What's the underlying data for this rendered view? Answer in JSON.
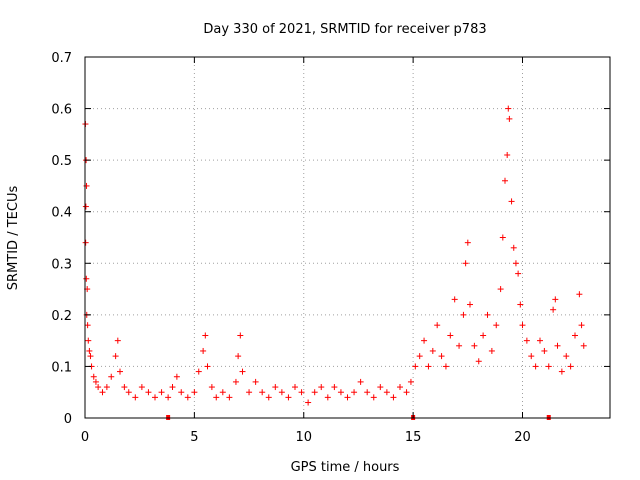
{
  "chart_data": {
    "type": "scatter",
    "title": "Day 330 of 2021, SRMTID for receiver p783",
    "xlabel": "GPS time / hours",
    "ylabel": "SRMTID / TECUs",
    "xlim": [
      0,
      24
    ],
    "ylim": [
      0,
      0.7
    ],
    "x_ticks": [
      0,
      5,
      10,
      15,
      20
    ],
    "x_tick_labels": [
      "0",
      "5",
      "10",
      "15",
      "20"
    ],
    "y_ticks": [
      0,
      0.1,
      0.2,
      0.3,
      0.4,
      0.5,
      0.6,
      0.7
    ],
    "y_tick_labels": [
      "0",
      "0.1",
      "0.2",
      "0.3",
      "0.4",
      "0.5",
      "0.6",
      "0.7"
    ],
    "grid": true,
    "marker": "+",
    "color": "#ff0000",
    "series": [
      {
        "name": "SRMTID",
        "points": [
          [
            0.02,
            0.57
          ],
          [
            0.05,
            0.5
          ],
          [
            0.07,
            0.45
          ],
          [
            0.04,
            0.41
          ],
          [
            0.03,
            0.34
          ],
          [
            0.06,
            0.27
          ],
          [
            0.1,
            0.25
          ],
          [
            0.08,
            0.2
          ],
          [
            0.12,
            0.18
          ],
          [
            0.15,
            0.15
          ],
          [
            0.2,
            0.13
          ],
          [
            0.25,
            0.12
          ],
          [
            0.3,
            0.1
          ],
          [
            0.4,
            0.08
          ],
          [
            0.5,
            0.07
          ],
          [
            0.6,
            0.06
          ],
          [
            0.8,
            0.05
          ],
          [
            1.0,
            0.06
          ],
          [
            1.2,
            0.08
          ],
          [
            1.4,
            0.12
          ],
          [
            1.5,
            0.15
          ],
          [
            1.6,
            0.09
          ],
          [
            1.8,
            0.06
          ],
          [
            2.0,
            0.05
          ],
          [
            2.3,
            0.04
          ],
          [
            2.6,
            0.06
          ],
          [
            2.9,
            0.05
          ],
          [
            3.2,
            0.04
          ],
          [
            3.5,
            0.05
          ],
          [
            3.8,
            0.04
          ],
          [
            4.0,
            0.06
          ],
          [
            4.2,
            0.08
          ],
          [
            4.4,
            0.05
          ],
          [
            4.7,
            0.04
          ],
          [
            5.0,
            0.05
          ],
          [
            5.2,
            0.09
          ],
          [
            5.4,
            0.13
          ],
          [
            5.5,
            0.16
          ],
          [
            5.6,
            0.1
          ],
          [
            5.8,
            0.06
          ],
          [
            6.0,
            0.04
          ],
          [
            6.3,
            0.05
          ],
          [
            6.6,
            0.04
          ],
          [
            6.9,
            0.07
          ],
          [
            7.0,
            0.12
          ],
          [
            7.1,
            0.16
          ],
          [
            7.2,
            0.09
          ],
          [
            7.5,
            0.05
          ],
          [
            7.8,
            0.07
          ],
          [
            8.1,
            0.05
          ],
          [
            8.4,
            0.04
          ],
          [
            8.7,
            0.06
          ],
          [
            9.0,
            0.05
          ],
          [
            9.3,
            0.04
          ],
          [
            9.6,
            0.06
          ],
          [
            9.9,
            0.05
          ],
          [
            10.2,
            0.03
          ],
          [
            10.5,
            0.05
          ],
          [
            10.8,
            0.06
          ],
          [
            11.1,
            0.04
          ],
          [
            11.4,
            0.06
          ],
          [
            11.7,
            0.05
          ],
          [
            12.0,
            0.04
          ],
          [
            12.3,
            0.05
          ],
          [
            12.6,
            0.07
          ],
          [
            12.9,
            0.05
          ],
          [
            13.2,
            0.04
          ],
          [
            13.5,
            0.06
          ],
          [
            13.8,
            0.05
          ],
          [
            14.1,
            0.04
          ],
          [
            14.4,
            0.06
          ],
          [
            14.7,
            0.05
          ],
          [
            14.9,
            0.07
          ],
          [
            15.1,
            0.1
          ],
          [
            15.3,
            0.12
          ],
          [
            15.5,
            0.15
          ],
          [
            15.7,
            0.1
          ],
          [
            15.9,
            0.13
          ],
          [
            16.1,
            0.18
          ],
          [
            16.3,
            0.12
          ],
          [
            16.5,
            0.1
          ],
          [
            16.7,
            0.16
          ],
          [
            16.9,
            0.23
          ],
          [
            17.1,
            0.14
          ],
          [
            17.3,
            0.2
          ],
          [
            17.4,
            0.3
          ],
          [
            17.5,
            0.34
          ],
          [
            17.6,
            0.22
          ],
          [
            17.8,
            0.14
          ],
          [
            18.0,
            0.11
          ],
          [
            18.2,
            0.16
          ],
          [
            18.4,
            0.2
          ],
          [
            18.6,
            0.13
          ],
          [
            18.8,
            0.18
          ],
          [
            19.0,
            0.25
          ],
          [
            19.1,
            0.35
          ],
          [
            19.2,
            0.46
          ],
          [
            19.3,
            0.51
          ],
          [
            19.35,
            0.6
          ],
          [
            19.4,
            0.58
          ],
          [
            19.5,
            0.42
          ],
          [
            19.6,
            0.33
          ],
          [
            19.7,
            0.3
          ],
          [
            19.8,
            0.28
          ],
          [
            19.9,
            0.22
          ],
          [
            20.0,
            0.18
          ],
          [
            20.2,
            0.15
          ],
          [
            20.4,
            0.12
          ],
          [
            20.6,
            0.1
          ],
          [
            20.8,
            0.15
          ],
          [
            21.0,
            0.13
          ],
          [
            21.2,
            0.1
          ],
          [
            21.4,
            0.21
          ],
          [
            21.5,
            0.23
          ],
          [
            21.6,
            0.14
          ],
          [
            21.8,
            0.09
          ],
          [
            22.0,
            0.12
          ],
          [
            22.2,
            0.1
          ],
          [
            22.4,
            0.16
          ],
          [
            22.6,
            0.24
          ],
          [
            22.7,
            0.18
          ],
          [
            22.8,
            0.14
          ]
        ]
      }
    ],
    "gap_markers_x": [
      3.8,
      15.0,
      21.2
    ]
  }
}
